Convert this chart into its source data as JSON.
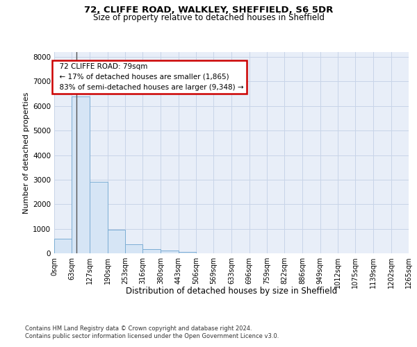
{
  "title1": "72, CLIFFE ROAD, WALKLEY, SHEFFIELD, S6 5DR",
  "title2": "Size of property relative to detached houses in Sheffield",
  "xlabel": "Distribution of detached houses by size in Sheffield",
  "ylabel": "Number of detached properties",
  "footnote1": "Contains HM Land Registry data © Crown copyright and database right 2024.",
  "footnote2": "Contains public sector information licensed under the Open Government Licence v3.0.",
  "annotation_title": "72 CLIFFE ROAD: 79sqm",
  "annotation_line2": "← 17% of detached houses are smaller (1,865)",
  "annotation_line3": "83% of semi-detached houses are larger (9,348) →",
  "property_sqm": 79,
  "bar_edges": [
    0,
    63,
    127,
    190,
    253,
    316,
    380,
    443,
    506,
    569,
    633,
    696,
    759,
    822,
    886,
    949,
    1012,
    1075,
    1139,
    1202,
    1265
  ],
  "bar_heights": [
    580,
    6400,
    2900,
    970,
    360,
    160,
    100,
    60,
    0,
    0,
    0,
    0,
    0,
    0,
    0,
    0,
    0,
    0,
    0,
    0
  ],
  "bar_fill_color": "#d6e5f5",
  "bar_edge_color": "#7badd4",
  "ylim_max": 8200,
  "yticks": [
    0,
    1000,
    2000,
    3000,
    4000,
    5000,
    6000,
    7000,
    8000
  ],
  "grid_color": "#c8d4e8",
  "bg_color": "#e8eef8",
  "annotation_border_color": "#cc0000",
  "vline_color": "#555555",
  "title1_fontsize": 9.5,
  "title2_fontsize": 8.5,
  "ylabel_fontsize": 8,
  "xlabel_fontsize": 8.5,
  "tick_fontsize": 7,
  "footnote_fontsize": 6.0
}
